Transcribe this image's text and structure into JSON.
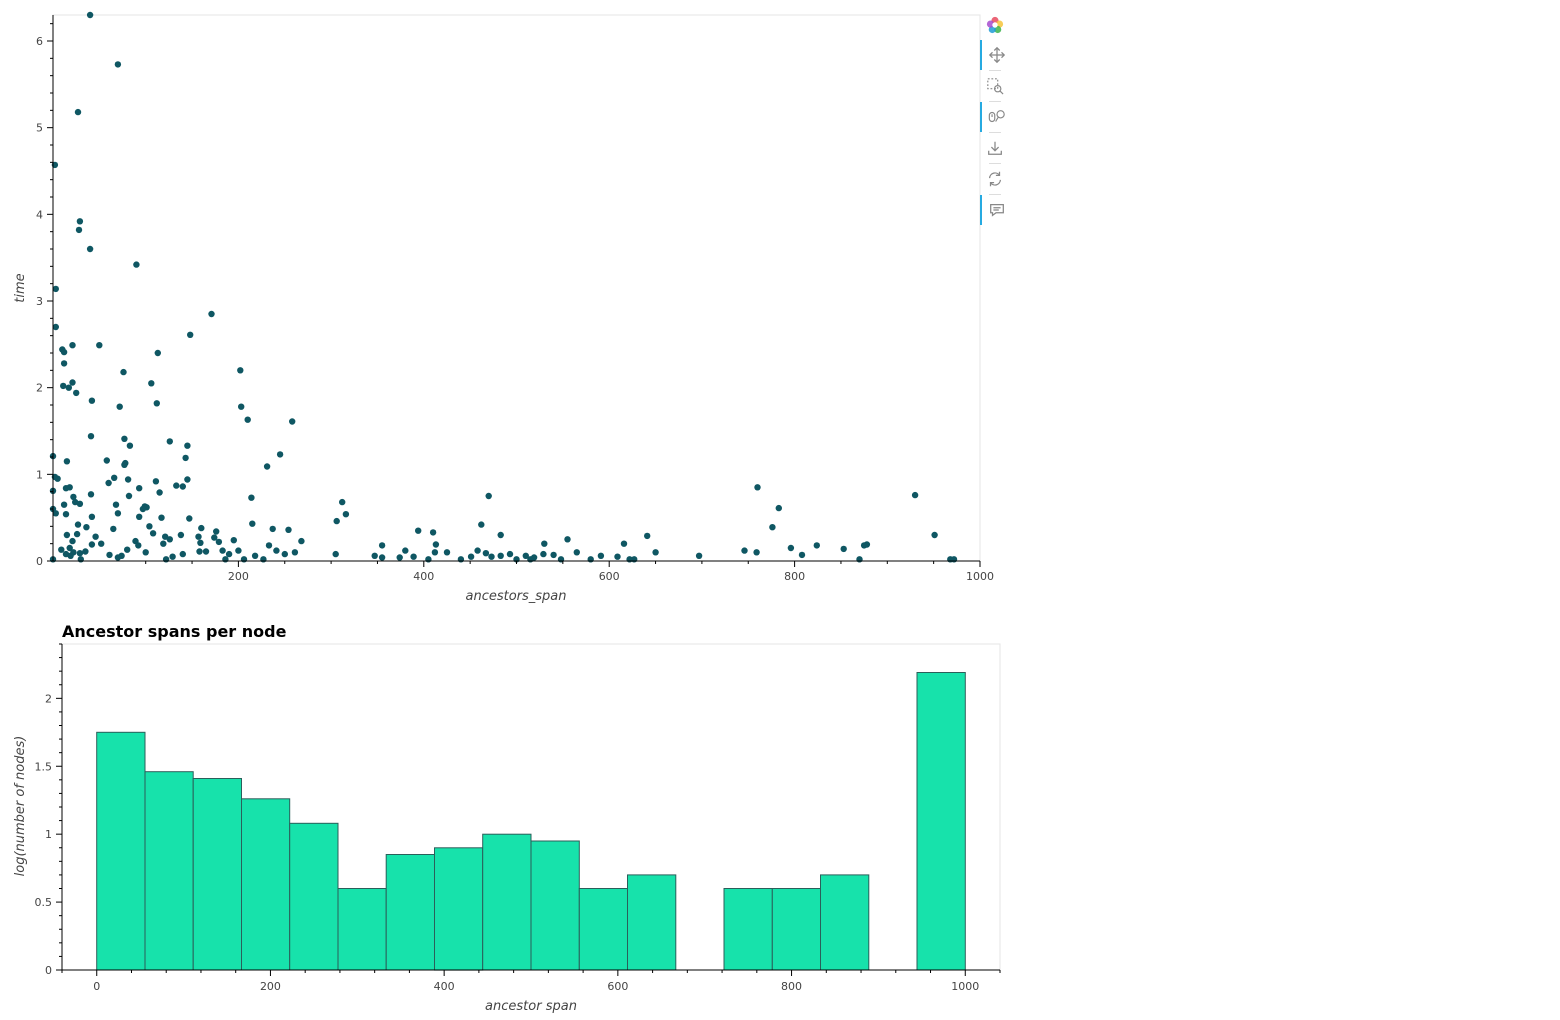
{
  "colors": {
    "scatter_point": "#0f5763",
    "hist_bar": "#17e2ab",
    "hist_bar_edge": "#2b5f5a",
    "tool_active": "#26aae1"
  },
  "toolbar": {
    "tools": [
      {
        "icon": "bokeh-logo-icon",
        "active": false
      },
      {
        "icon": "pan-icon",
        "active": true
      },
      {
        "icon": "box-zoom-icon",
        "active": false
      },
      {
        "icon": "wheel-zoom-icon",
        "active": true
      },
      {
        "icon": "save-icon",
        "active": false
      },
      {
        "icon": "reset-icon",
        "active": false
      },
      {
        "icon": "hover-icon",
        "active": true
      }
    ]
  },
  "chart_data": [
    {
      "type": "scatter",
      "title": "",
      "xlabel": "ancestors_span",
      "ylabel": "time",
      "xlim": [
        0,
        1000
      ],
      "ylim": [
        0,
        6.3
      ],
      "x_ticks": [
        200,
        400,
        600,
        800,
        1000
      ],
      "y_ticks": [
        0,
        1,
        2,
        3,
        4,
        5,
        6
      ],
      "grid": false,
      "points": [
        [
          40,
          6.3
        ],
        [
          70,
          5.73
        ],
        [
          27,
          5.18
        ],
        [
          2,
          4.57
        ],
        [
          29,
          3.92
        ],
        [
          28,
          3.82
        ],
        [
          40,
          3.6
        ],
        [
          90,
          3.42
        ],
        [
          3,
          3.14
        ],
        [
          171,
          2.85
        ],
        [
          3,
          2.7
        ],
        [
          148,
          2.61
        ],
        [
          10,
          2.44
        ],
        [
          12,
          2.41
        ],
        [
          50,
          2.49
        ],
        [
          21,
          2.49
        ],
        [
          113,
          2.4
        ],
        [
          12,
          2.28
        ],
        [
          76,
          2.18
        ],
        [
          202,
          2.2
        ],
        [
          21,
          2.06
        ],
        [
          11,
          2.02
        ],
        [
          17,
          2.0
        ],
        [
          106,
          2.05
        ],
        [
          25,
          1.94
        ],
        [
          42,
          1.85
        ],
        [
          112,
          1.82
        ],
        [
          72,
          1.78
        ],
        [
          203,
          1.78
        ],
        [
          210,
          1.63
        ],
        [
          258,
          1.61
        ],
        [
          41,
          1.44
        ],
        [
          77,
          1.41
        ],
        [
          126,
          1.38
        ],
        [
          83,
          1.33
        ],
        [
          145,
          1.33
        ],
        [
          0,
          1.21
        ],
        [
          143,
          1.19
        ],
        [
          245,
          1.23
        ],
        [
          15,
          1.15
        ],
        [
          58,
          1.16
        ],
        [
          78,
          1.13
        ],
        [
          77,
          1.11
        ],
        [
          231,
          1.09
        ],
        [
          5,
          0.95
        ],
        [
          2,
          0.97
        ],
        [
          66,
          0.96
        ],
        [
          81,
          0.94
        ],
        [
          111,
          0.92
        ],
        [
          145,
          0.94
        ],
        [
          60,
          0.9
        ],
        [
          133,
          0.87
        ],
        [
          140,
          0.86
        ],
        [
          18,
          0.85
        ],
        [
          14,
          0.84
        ],
        [
          93,
          0.84
        ],
        [
          115,
          0.79
        ],
        [
          41,
          0.77
        ],
        [
          0,
          0.81
        ],
        [
          82,
          0.75
        ],
        [
          22,
          0.74
        ],
        [
          214,
          0.73
        ],
        [
          24,
          0.68
        ],
        [
          29,
          0.66
        ],
        [
          68,
          0.65
        ],
        [
          99,
          0.63
        ],
        [
          101,
          0.62
        ],
        [
          312,
          0.68
        ],
        [
          470,
          0.75
        ],
        [
          760,
          0.85
        ],
        [
          930,
          0.76
        ],
        [
          0,
          0.6
        ],
        [
          12,
          0.65
        ],
        [
          97,
          0.6
        ],
        [
          3,
          0.55
        ],
        [
          70,
          0.55
        ],
        [
          14,
          0.54
        ],
        [
          316,
          0.54
        ],
        [
          783,
          0.61
        ],
        [
          42,
          0.51
        ],
        [
          93,
          0.51
        ],
        [
          117,
          0.5
        ],
        [
          147,
          0.49
        ],
        [
          306,
          0.46
        ],
        [
          215,
          0.43
        ],
        [
          27,
          0.42
        ],
        [
          36,
          0.39
        ],
        [
          65,
          0.37
        ],
        [
          104,
          0.4
        ],
        [
          160,
          0.38
        ],
        [
          237,
          0.37
        ],
        [
          394,
          0.35
        ],
        [
          410,
          0.33
        ],
        [
          462,
          0.42
        ],
        [
          483,
          0.3
        ],
        [
          641,
          0.29
        ],
        [
          776,
          0.39
        ],
        [
          951,
          0.3
        ],
        [
          15,
          0.3
        ],
        [
          26,
          0.31
        ],
        [
          46,
          0.28
        ],
        [
          108,
          0.32
        ],
        [
          121,
          0.28
        ],
        [
          157,
          0.28
        ],
        [
          176,
          0.34
        ],
        [
          21,
          0.23
        ],
        [
          52,
          0.2
        ],
        [
          89,
          0.23
        ],
        [
          126,
          0.25
        ],
        [
          138,
          0.3
        ],
        [
          174,
          0.27
        ],
        [
          195,
          0.24
        ],
        [
          254,
          0.36
        ],
        [
          268,
          0.23
        ],
        [
          159,
          0.21
        ],
        [
          9,
          0.13
        ],
        [
          18,
          0.15
        ],
        [
          42,
          0.19
        ],
        [
          92,
          0.18
        ],
        [
          119,
          0.2
        ],
        [
          179,
          0.22
        ],
        [
          233,
          0.18
        ],
        [
          355,
          0.18
        ],
        [
          413,
          0.19
        ],
        [
          555,
          0.25
        ],
        [
          616,
          0.2
        ],
        [
          824,
          0.18
        ],
        [
          530,
          0.2
        ],
        [
          14,
          0.08
        ],
        [
          22,
          0.1
        ],
        [
          29,
          0.09
        ],
        [
          35,
          0.11
        ],
        [
          61,
          0.07
        ],
        [
          74,
          0.06
        ],
        [
          80,
          0.13
        ],
        [
          100,
          0.1
        ],
        [
          129,
          0.05
        ],
        [
          140,
          0.08
        ],
        [
          158,
          0.11
        ],
        [
          165,
          0.11
        ],
        [
          183,
          0.12
        ],
        [
          190,
          0.08
        ],
        [
          200,
          0.12
        ],
        [
          218,
          0.06
        ],
        [
          241,
          0.12
        ],
        [
          250,
          0.08
        ],
        [
          261,
          0.1
        ],
        [
          305,
          0.08
        ],
        [
          347,
          0.06
        ],
        [
          355,
          0.04
        ],
        [
          374,
          0.04
        ],
        [
          380,
          0.12
        ],
        [
          389,
          0.05
        ],
        [
          412,
          0.1
        ],
        [
          425,
          0.1
        ],
        [
          451,
          0.05
        ],
        [
          458,
          0.12
        ],
        [
          467,
          0.09
        ],
        [
          473,
          0.05
        ],
        [
          483,
          0.06
        ],
        [
          493,
          0.08
        ],
        [
          510,
          0.06
        ],
        [
          519,
          0.04
        ],
        [
          529,
          0.08
        ],
        [
          540,
          0.07
        ],
        [
          565,
          0.1
        ],
        [
          591,
          0.06
        ],
        [
          609,
          0.05
        ],
        [
          627,
          0.02
        ],
        [
          650,
          0.1
        ],
        [
          697,
          0.06
        ],
        [
          746,
          0.12
        ],
        [
          759,
          0.1
        ],
        [
          796,
          0.15
        ],
        [
          808,
          0.07
        ],
        [
          853,
          0.14
        ],
        [
          878,
          0.19
        ],
        [
          875,
          0.18
        ],
        [
          870,
          0.02
        ],
        [
          968,
          0.02
        ],
        [
          0,
          0.02
        ],
        [
          19,
          0.06
        ],
        [
          30,
          0.02
        ],
        [
          70,
          0.04
        ],
        [
          122,
          0.02
        ],
        [
          186,
          0.02
        ],
        [
          206,
          0.02
        ],
        [
          227,
          0.02
        ],
        [
          405,
          0.02
        ],
        [
          440,
          0.02
        ],
        [
          500,
          0.02
        ],
        [
          515,
          0.02
        ],
        [
          548,
          0.02
        ],
        [
          580,
          0.02
        ],
        [
          622,
          0.02
        ],
        [
          972,
          0.02
        ]
      ]
    },
    {
      "type": "bar",
      "title": "Ancestor spans per node",
      "xlabel": "ancestor span",
      "ylabel": "log(number of nodes)",
      "xlim": [
        -40,
        1040
      ],
      "ylim": [
        0,
        2.4
      ],
      "x_ticks": [
        0,
        200,
        400,
        600,
        800,
        1000
      ],
      "y_ticks": [
        0,
        0.5,
        1,
        1.5,
        2
      ],
      "y_tick_labels": [
        "0",
        "0.5",
        "1",
        "1.5",
        "2"
      ],
      "grid": false,
      "bins": [
        {
          "x0": 0,
          "x1": 55.6,
          "value": 1.75
        },
        {
          "x0": 55.6,
          "x1": 111.1,
          "value": 1.46
        },
        {
          "x0": 111.1,
          "x1": 166.7,
          "value": 1.41
        },
        {
          "x0": 166.7,
          "x1": 222.2,
          "value": 1.26
        },
        {
          "x0": 222.2,
          "x1": 277.8,
          "value": 1.08
        },
        {
          "x0": 277.8,
          "x1": 333.3,
          "value": 0.6
        },
        {
          "x0": 333.3,
          "x1": 388.9,
          "value": 0.85
        },
        {
          "x0": 388.9,
          "x1": 444.4,
          "value": 0.9
        },
        {
          "x0": 444.4,
          "x1": 500.0,
          "value": 1.0
        },
        {
          "x0": 500.0,
          "x1": 555.6,
          "value": 0.95
        },
        {
          "x0": 555.6,
          "x1": 611.1,
          "value": 0.6
        },
        {
          "x0": 611.1,
          "x1": 666.7,
          "value": 0.7
        },
        {
          "x0": 722.2,
          "x1": 777.8,
          "value": 0.6
        },
        {
          "x0": 777.8,
          "x1": 833.3,
          "value": 0.6
        },
        {
          "x0": 833.3,
          "x1": 888.9,
          "value": 0.7
        },
        {
          "x0": 944.4,
          "x1": 1000.0,
          "value": 2.19
        }
      ]
    }
  ]
}
